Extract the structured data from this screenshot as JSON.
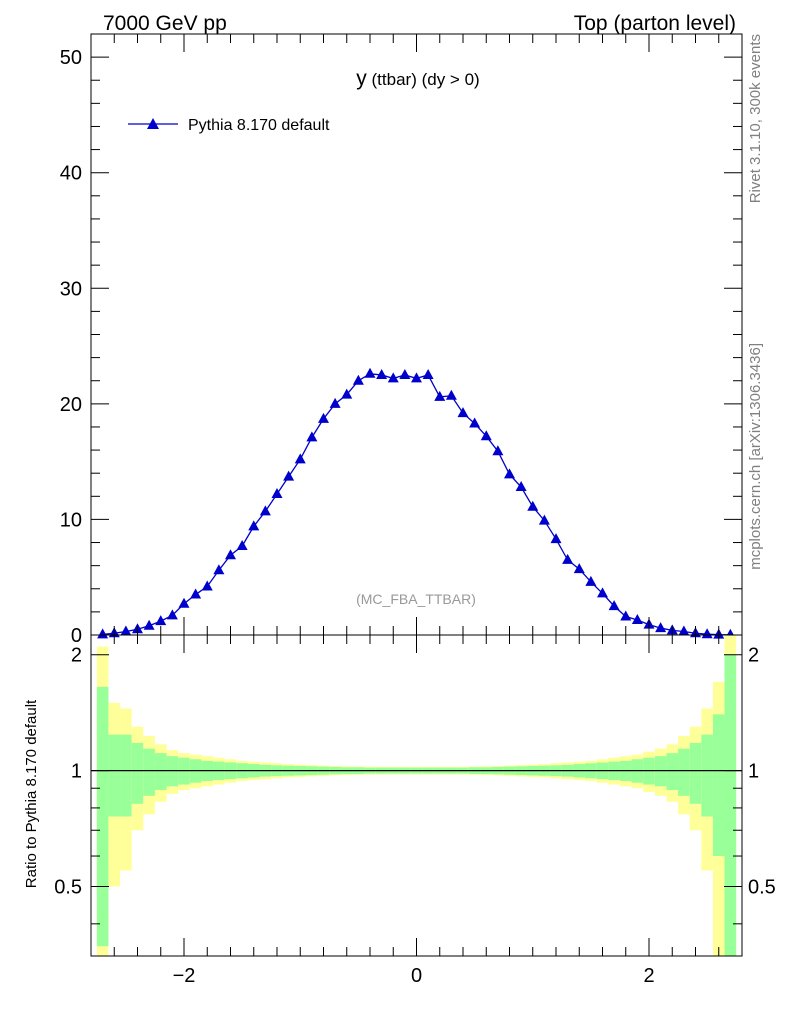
{
  "header": {
    "left": "7000 GeV pp",
    "right": "Top (parton level)"
  },
  "side_text": {
    "top": "Rivet 3.1.10,  300k events",
    "bottom": "mcplots.cern.ch [arXiv:1306.3436]"
  },
  "colors": {
    "series": "#0000cc",
    "band_inner": "#99ff99",
    "band_outer": "#ffff99",
    "watermark": "#999999"
  },
  "chart_data": [
    {
      "type": "line",
      "title": "y",
      "title_suffix": " (ttbar) (dy > 0)",
      "watermark": "(MC_FBA_TTBAR)",
      "xlabel": "",
      "ylabel": "",
      "xlim": [
        -2.8,
        2.8
      ],
      "ylim": [
        0,
        52
      ],
      "x_ticks": [
        -2,
        0,
        2
      ],
      "y_ticks": [
        0,
        10,
        20,
        30,
        40,
        50
      ],
      "y_tick_labels": [
        "0",
        "10",
        "20",
        "30",
        "40",
        "50"
      ],
      "legend": "top-left",
      "marker": "triangle",
      "series": [
        {
          "name": "Pythia 8.170 default",
          "x": [
            -2.7,
            -2.6,
            -2.5,
            -2.4,
            -2.3,
            -2.2,
            -2.1,
            -2.0,
            -1.9,
            -1.8,
            -1.7,
            -1.6,
            -1.5,
            -1.4,
            -1.3,
            -1.2,
            -1.1,
            -1.0,
            -0.9,
            -0.8,
            -0.7,
            -0.6,
            -0.5,
            -0.4,
            -0.3,
            -0.2,
            -0.1,
            0.0,
            0.1,
            0.2,
            0.3,
            0.4,
            0.5,
            0.6,
            0.7,
            0.8,
            0.9,
            1.0,
            1.1,
            1.2,
            1.3,
            1.4,
            1.5,
            1.6,
            1.7,
            1.8,
            1.9,
            2.0,
            2.1,
            2.2,
            2.3,
            2.4,
            2.5,
            2.6,
            2.7
          ],
          "values": [
            0.05,
            0.15,
            0.3,
            0.5,
            0.8,
            1.2,
            1.7,
            2.7,
            3.5,
            4.2,
            5.6,
            6.9,
            7.7,
            9.4,
            10.7,
            12.2,
            13.7,
            15.2,
            17.1,
            18.7,
            20.0,
            20.8,
            22.0,
            22.6,
            22.5,
            22.2,
            22.5,
            22.2,
            22.5,
            20.6,
            20.7,
            19.2,
            18.3,
            17.2,
            15.9,
            13.9,
            12.8,
            11.1,
            9.9,
            8.3,
            6.5,
            5.7,
            4.6,
            3.6,
            2.5,
            1.6,
            1.3,
            0.9,
            0.6,
            0.4,
            0.3,
            0.15,
            0.07,
            0.03,
            0.02
          ]
        }
      ]
    },
    {
      "type": "area",
      "ylabel": "Ratio to Pythia 8.170 default",
      "xlim": [
        -2.8,
        2.8
      ],
      "ylim": [
        0.33,
        2.25
      ],
      "x_ticks": [
        -2,
        0,
        2
      ],
      "x_tick_labels": [
        "−2",
        "0",
        "2"
      ],
      "y_ticks": [
        0.5,
        1,
        2
      ],
      "y_tick_labels": [
        "0.5",
        "1",
        "2"
      ],
      "reference_line": 1,
      "bins_x": [
        -2.7,
        -2.6,
        -2.5,
        -2.4,
        -2.3,
        -2.2,
        -2.1,
        -2.0,
        -1.9,
        -1.8,
        -1.7,
        -1.6,
        -1.5,
        -1.4,
        -1.3,
        -1.2,
        -1.1,
        -1.0,
        -0.9,
        -0.8,
        -0.7,
        -0.6,
        -0.5,
        -0.4,
        -0.3,
        -0.2,
        -0.1,
        0.0,
        0.1,
        0.2,
        0.3,
        0.4,
        0.5,
        0.6,
        0.7,
        0.8,
        0.9,
        1.0,
        1.1,
        1.2,
        1.3,
        1.4,
        1.5,
        1.6,
        1.7,
        1.8,
        1.9,
        2.0,
        2.1,
        2.2,
        2.3,
        2.4,
        2.5,
        2.6,
        2.7
      ],
      "bin_width": 0.1,
      "band_inner_rel": [
        0.65,
        0.24,
        0.24,
        0.18,
        0.14,
        0.11,
        0.09,
        0.08,
        0.07,
        0.06,
        0.055,
        0.05,
        0.045,
        0.04,
        0.035,
        0.032,
        0.03,
        0.028,
        0.026,
        0.024,
        0.022,
        0.02,
        0.02,
        0.018,
        0.018,
        0.018,
        0.018,
        0.018,
        0.018,
        0.018,
        0.018,
        0.018,
        0.02,
        0.02,
        0.022,
        0.024,
        0.026,
        0.028,
        0.03,
        0.032,
        0.035,
        0.04,
        0.045,
        0.05,
        0.055,
        0.06,
        0.07,
        0.08,
        0.09,
        0.11,
        0.14,
        0.18,
        0.24,
        0.4,
        1.0
      ],
      "band_outer_rel": [
        1.1,
        0.5,
        0.45,
        0.3,
        0.23,
        0.17,
        0.13,
        0.11,
        0.1,
        0.09,
        0.08,
        0.07,
        0.06,
        0.055,
        0.05,
        0.045,
        0.04,
        0.037,
        0.034,
        0.031,
        0.028,
        0.026,
        0.025,
        0.024,
        0.023,
        0.023,
        0.023,
        0.023,
        0.023,
        0.023,
        0.023,
        0.023,
        0.025,
        0.026,
        0.028,
        0.031,
        0.034,
        0.037,
        0.04,
        0.045,
        0.05,
        0.055,
        0.06,
        0.07,
        0.08,
        0.09,
        0.1,
        0.12,
        0.14,
        0.17,
        0.23,
        0.3,
        0.45,
        0.7,
        1.4
      ]
    }
  ]
}
